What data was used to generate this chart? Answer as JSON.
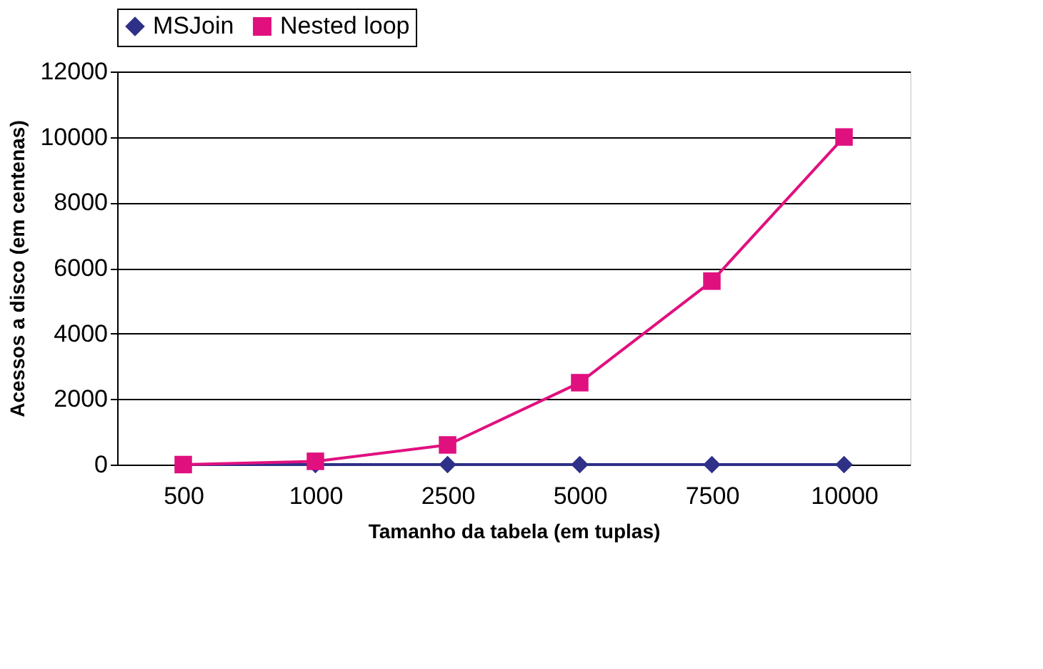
{
  "chart_data": {
    "type": "line",
    "xlabel": "Tamanho da tabela (em tuplas)",
    "ylabel": "Acessos a disco (em centenas)",
    "categories": [
      "500",
      "1000",
      "2500",
      "5000",
      "7500",
      "10000"
    ],
    "series": [
      {
        "name": "MSJoin",
        "color": "#2e3187",
        "marker": "diamond",
        "values": [
          0,
          0,
          0,
          0,
          0,
          0
        ]
      },
      {
        "name": "Nested loop",
        "color": "#e0107f",
        "marker": "square",
        "values": [
          0,
          100,
          600,
          2500,
          5600,
          10000
        ]
      }
    ],
    "ylim": [
      0,
      12000
    ],
    "yticks": [
      0,
      2000,
      4000,
      6000,
      8000,
      10000,
      12000
    ],
    "grid": "y",
    "legend": "top",
    "line_style": "solid"
  }
}
